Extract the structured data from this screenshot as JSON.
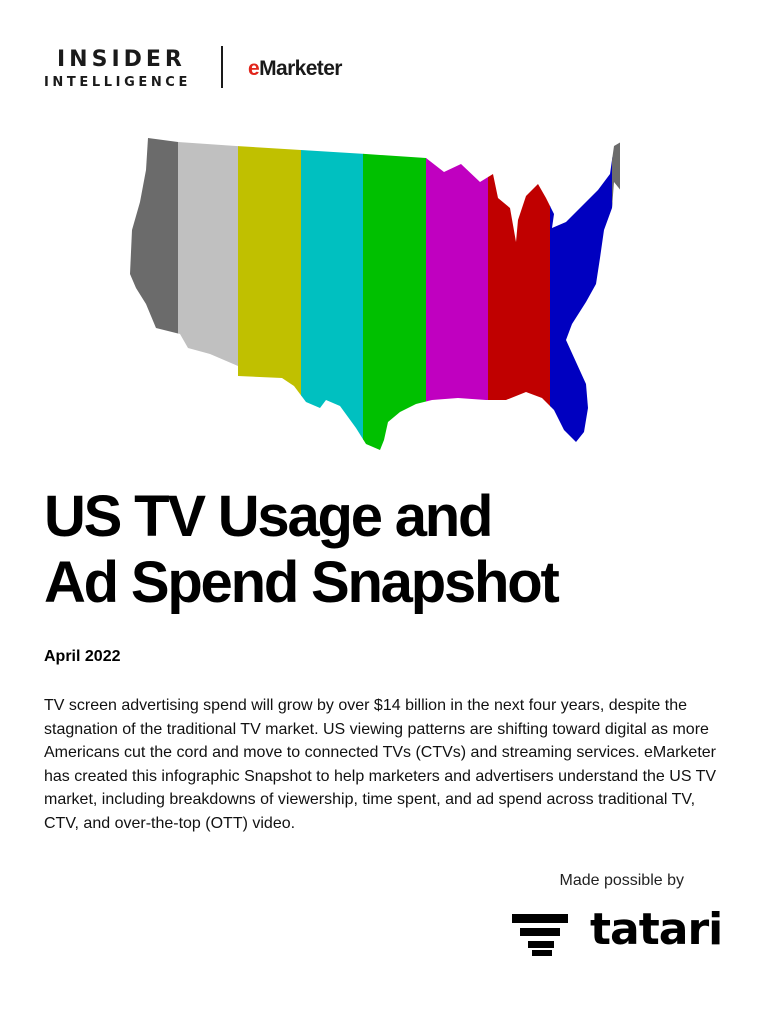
{
  "header": {
    "brand_line1": "INSIDER",
    "brand_line2": "INTELLIGENCE",
    "partner_prefix": "e",
    "partner_rest": "Marketer"
  },
  "hero_map": {
    "stripe_colors": [
      "#6b6b6b",
      "#c0c0c0",
      "#c0c000",
      "#00c0c0",
      "#00c000",
      "#c000c0",
      "#c00000",
      "#0000c0",
      "#6b6b6b"
    ]
  },
  "title": {
    "line1": "US TV Usage and",
    "line2": "Ad Spend Snapshot"
  },
  "date": "April 2022",
  "body": "TV screen advertising spend will grow by over $14 billion in the next four years, despite the stagnation of the traditional TV market. US viewing patterns are shifting toward digital as more Americans cut the cord and move to connected TVs (CTVs) and streaming services. eMarketer has created this infographic Snapshot to help marketers and advertisers understand the US TV market, including breakdowns of viewership, time spent, and ad spend across traditional TV, CTV, and over-the-top (OTT) video.",
  "sponsor": {
    "label": "Made possible by",
    "name": "tatari"
  }
}
